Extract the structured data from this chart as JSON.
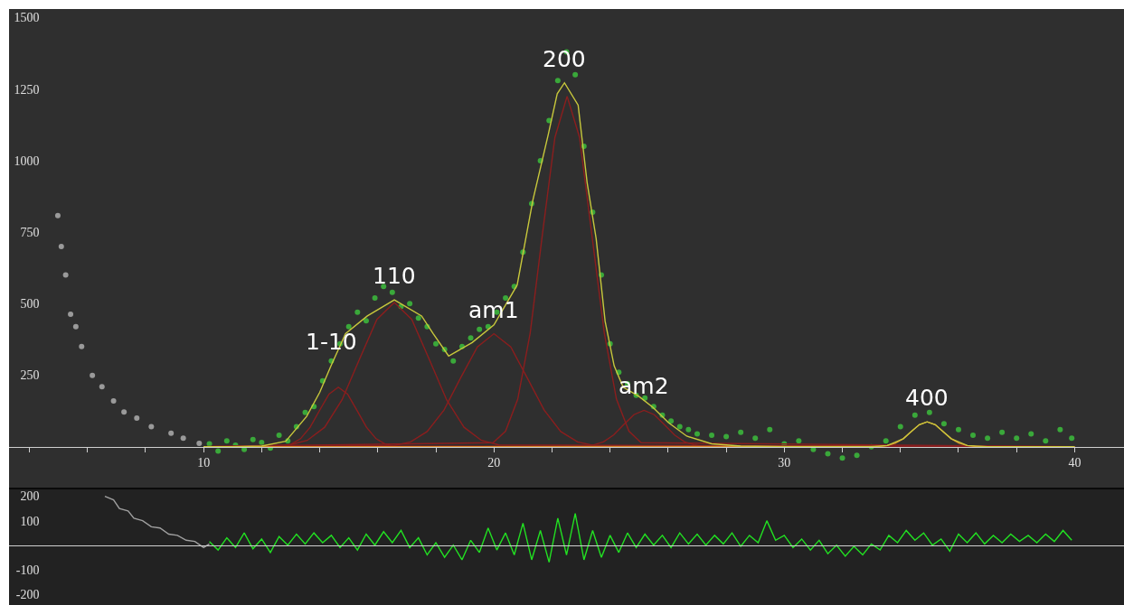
{
  "chart_data": [
    {
      "type": "line",
      "xlim": [
        3.3,
        41.7
      ],
      "ylim": [
        -143,
        1530
      ],
      "xticks": [
        {
          "value": 4,
          "label": null
        },
        {
          "value": 6,
          "label": null
        },
        {
          "value": 8,
          "label": null
        },
        10,
        {
          "value": 12,
          "label": null
        },
        {
          "value": 14,
          "label": null
        },
        {
          "value": 16,
          "label": null
        },
        {
          "value": 18,
          "label": null
        },
        20,
        {
          "value": 22,
          "label": null
        },
        {
          "value": 24,
          "label": null
        },
        {
          "value": 26,
          "label": null
        },
        {
          "value": 28,
          "label": null
        },
        30,
        {
          "value": 32,
          "label": null
        },
        {
          "value": 34,
          "label": null
        },
        {
          "value": 36,
          "label": null
        },
        {
          "value": 38,
          "label": null
        },
        40
      ],
      "yticks": [
        250,
        500,
        750,
        1000,
        1250,
        1500
      ],
      "annotations": [
        {
          "text": "1-10",
          "x": 14.39,
          "y": 283
        },
        {
          "text": "110",
          "x": 16.57,
          "y": 513
        },
        {
          "text": "am1",
          "x": 20.0,
          "y": 395
        },
        {
          "text": "200",
          "x": 22.43,
          "y": 1272
        },
        {
          "text": "am2",
          "x": 25.17,
          "y": 127
        },
        {
          "text": "400",
          "x": 34.92,
          "y": 87
        }
      ],
      "series": [
        {
          "type": "scatter",
          "color": "#9a9a9a",
          "x": [
            4.98,
            5.1,
            5.25,
            5.42,
            5.6,
            5.8,
            6.17,
            6.5,
            6.9,
            7.26,
            7.7,
            8.2,
            8.88,
            9.3,
            9.85
          ],
          "values": [
            808,
            700,
            600,
            463,
            420,
            350,
            249,
            210,
            160,
            121,
            100,
            70,
            47,
            30,
            12
          ]
        },
        {
          "type": "scatter",
          "color": "#3aa83a",
          "x": [
            10.2,
            10.5,
            10.8,
            11.1,
            11.4,
            11.7,
            12.0,
            12.3,
            12.6,
            12.9,
            13.2,
            13.5,
            13.8,
            14.1,
            14.4,
            14.7,
            15.0,
            15.3,
            15.6,
            15.9,
            16.2,
            16.5,
            16.8,
            17.1,
            17.4,
            17.7,
            18.0,
            18.3,
            18.6,
            18.9,
            19.2,
            19.5,
            19.8,
            20.1,
            20.4,
            20.7,
            21.0,
            21.3,
            21.6,
            21.9,
            22.2,
            22.5,
            22.8,
            23.1,
            23.4,
            23.7,
            24.0,
            24.3,
            24.6,
            24.9,
            25.2,
            25.5,
            25.8,
            26.1,
            26.4,
            26.7,
            27.0,
            27.5,
            28.0,
            28.5,
            29.0,
            29.5,
            30.0,
            30.5,
            31.0,
            31.5,
            32.0,
            32.5,
            33.0,
            33.5,
            34.0,
            34.5,
            35.0,
            35.5,
            36.0,
            36.5,
            37.0,
            37.5,
            38.0,
            38.5,
            39.0,
            39.5,
            39.9
          ],
          "values": [
            10,
            -15,
            20,
            5,
            -10,
            25,
            15,
            -5,
            40,
            20,
            70,
            120,
            140,
            230,
            300,
            360,
            420,
            470,
            440,
            520,
            560,
            540,
            490,
            500,
            450,
            420,
            360,
            340,
            300,
            350,
            380,
            410,
            420,
            470,
            520,
            560,
            680,
            850,
            1000,
            1140,
            1280,
            1380,
            1300,
            1050,
            820,
            600,
            360,
            260,
            220,
            180,
            170,
            140,
            110,
            90,
            70,
            60,
            45,
            40,
            35,
            50,
            30,
            60,
            10,
            20,
            -10,
            -25,
            -40,
            -30,
            0,
            20,
            70,
            110,
            120,
            80,
            60,
            40,
            30,
            50,
            30,
            45,
            20,
            60,
            30
          ]
        },
        {
          "type": "line",
          "color": "#8b1e1e",
          "x": [
            10,
            12.69,
            13.02,
            13.34,
            13.67,
            13.99,
            14.32,
            14.64,
            14.96,
            15.29,
            15.61,
            15.94,
            16.26,
            16.59,
            40
          ],
          "values": [
            0,
            2,
            9,
            28,
            68,
            126,
            184,
            208,
            184,
            126,
            68,
            28,
            9,
            2,
            0
          ]
        },
        {
          "type": "line",
          "color": "#8b1e1e",
          "x": [
            10,
            12.97,
            13.57,
            14.17,
            14.77,
            15.37,
            15.97,
            16.57,
            17.17,
            17.77,
            18.37,
            18.97,
            19.57,
            20.17,
            40
          ],
          "values": [
            0,
            6,
            22,
            68,
            164,
            306,
            445,
            504,
            445,
            306,
            164,
            68,
            22,
            6,
            0
          ]
        },
        {
          "type": "line",
          "color": "#8b1e1e",
          "x": [
            10,
            16.55,
            17.13,
            17.7,
            18.28,
            18.85,
            19.43,
            20.0,
            20.58,
            21.15,
            21.73,
            22.3,
            22.88,
            23.45,
            40
          ],
          "values": [
            0,
            4,
            17,
            53,
            128,
            240,
            349,
            395,
            349,
            240,
            128,
            53,
            17,
            4,
            0
          ]
        },
        {
          "type": "line",
          "color": "#8b1e1e",
          "x": [
            10,
            19.97,
            20.4,
            20.82,
            21.25,
            21.67,
            22.1,
            22.52,
            22.95,
            23.37,
            23.8,
            24.22,
            24.65,
            25.07,
            40
          ],
          "values": [
            0,
            14,
            54,
            166,
            398,
            743,
            1081,
            1225,
            1081,
            743,
            398,
            166,
            54,
            14,
            0
          ]
        },
        {
          "type": "line",
          "color": "#8b1e1e",
          "x": [
            10,
            23.07,
            23.42,
            23.77,
            24.12,
            24.47,
            24.82,
            25.17,
            25.52,
            25.87,
            26.22,
            26.57,
            26.92,
            27.27,
            40
          ],
          "values": [
            0,
            1,
            6,
            17,
            41,
            77,
            112,
            127,
            112,
            77,
            41,
            17,
            6,
            1,
            0
          ]
        },
        {
          "type": "line",
          "color": "#d9892a",
          "x": [
            10,
            33.27,
            33.55,
            33.82,
            34.1,
            34.37,
            34.65,
            34.92,
            35.2,
            35.47,
            35.75,
            36.02,
            36.3,
            36.57,
            40
          ],
          "values": [
            0,
            1,
            4,
            12,
            28,
            53,
            77,
            87,
            77,
            53,
            28,
            12,
            4,
            1,
            0
          ]
        },
        {
          "type": "line",
          "color": "#c8c83c",
          "x": [
            10,
            11,
            12,
            12.83,
            13.55,
            14.0,
            14.39,
            14.89,
            15.64,
            16.57,
            17.51,
            17.91,
            18.44,
            19.25,
            20.0,
            20.8,
            21.34,
            21.87,
            22.18,
            22.43,
            22.9,
            23.21,
            23.52,
            23.83,
            24.14,
            24.45,
            24.98,
            25.48,
            26.01,
            26.64,
            27.5,
            28.5,
            30,
            33,
            33.55,
            34.1,
            34.37,
            34.65,
            34.92,
            35.2,
            35.47,
            35.75,
            36.3,
            37,
            40
          ],
          "values": [
            0,
            0,
            2,
            19,
            106,
            190,
            283,
            395,
            457,
            513,
            457,
            395,
            317,
            364,
            426,
            565,
            861,
            1091,
            1234,
            1272,
            1194,
            923,
            728,
            438,
            283,
            208,
            177,
            137,
            84,
            37,
            10,
            2,
            0,
            0,
            4,
            28,
            53,
            77,
            87,
            77,
            53,
            28,
            4,
            0,
            0
          ]
        }
      ]
    },
    {
      "type": "line",
      "xlim": [
        3.3,
        41.7
      ],
      "ylim": [
        -245,
        228
      ],
      "yticks": [
        200,
        100,
        -100,
        -200
      ],
      "tick_labels": "y",
      "series": [
        {
          "type": "line",
          "color": "#a0a0a0",
          "x": [
            6.6,
            6.9,
            7.1,
            7.4,
            7.6,
            7.9,
            8.2,
            8.5,
            8.8,
            9.1,
            9.4,
            9.7,
            10.0,
            10.2
          ],
          "values": [
            200,
            185,
            150,
            140,
            110,
            100,
            75,
            70,
            45,
            40,
            20,
            15,
            -10,
            5
          ]
        },
        {
          "type": "line",
          "color": "#22e022",
          "x": [
            10.2,
            10.5,
            10.8,
            11.1,
            11.4,
            11.7,
            12.0,
            12.3,
            12.6,
            12.9,
            13.2,
            13.5,
            13.8,
            14.1,
            14.4,
            14.7,
            15.0,
            15.3,
            15.6,
            15.9,
            16.2,
            16.5,
            16.8,
            17.1,
            17.4,
            17.7,
            18.0,
            18.3,
            18.6,
            18.9,
            19.2,
            19.5,
            19.8,
            20.1,
            20.4,
            20.7,
            21.0,
            21.3,
            21.6,
            21.9,
            22.2,
            22.5,
            22.8,
            23.1,
            23.4,
            23.7,
            24.0,
            24.3,
            24.6,
            24.9,
            25.2,
            25.5,
            25.8,
            26.1,
            26.4,
            26.7,
            27.0,
            27.3,
            27.6,
            27.9,
            28.2,
            28.5,
            28.8,
            29.1,
            29.4,
            29.7,
            30.0,
            30.3,
            30.6,
            30.9,
            31.2,
            31.5,
            31.8,
            32.1,
            32.4,
            32.7,
            33.0,
            33.3,
            33.6,
            33.9,
            34.2,
            34.5,
            34.8,
            35.1,
            35.4,
            35.7,
            36.0,
            36.3,
            36.6,
            36.9,
            37.2,
            37.5,
            37.8,
            38.1,
            38.4,
            38.7,
            39.0,
            39.3,
            39.6,
            39.9
          ],
          "values": [
            15,
            -20,
            30,
            -10,
            50,
            -15,
            25,
            -30,
            35,
            0,
            45,
            5,
            50,
            10,
            40,
            -10,
            30,
            -20,
            45,
            0,
            55,
            10,
            60,
            -10,
            30,
            -40,
            10,
            -50,
            0,
            -60,
            20,
            -30,
            70,
            -20,
            50,
            -40,
            90,
            -60,
            60,
            -70,
            110,
            -40,
            130,
            -60,
            60,
            -50,
            40,
            -30,
            50,
            -10,
            45,
            0,
            40,
            -10,
            50,
            5,
            45,
            0,
            40,
            5,
            50,
            -5,
            40,
            10,
            100,
            20,
            40,
            -10,
            25,
            -20,
            20,
            -35,
            0,
            -45,
            -5,
            -40,
            5,
            -20,
            40,
            10,
            60,
            20,
            50,
            0,
            25,
            -25,
            45,
            10,
            50,
            5,
            40,
            10,
            45,
            15,
            40,
            10,
            45,
            15,
            60,
            20
          ]
        }
      ]
    }
  ]
}
